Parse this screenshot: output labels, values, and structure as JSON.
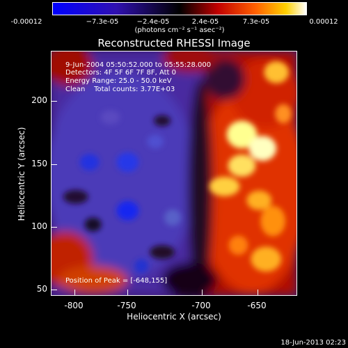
{
  "colorbar": {
    "ticks": [
      "-0.00012",
      "−7.3e-05",
      "−2.4e-05",
      "2.4e-05",
      "7.3e-05",
      "0.00012"
    ],
    "units": "(photons cm⁻² s⁻¹ asec⁻²)"
  },
  "title": "Reconstructed RHESSI Image",
  "annotations": {
    "time": "9-Jun-2004 05:50:52.000 to 05:55:28.000",
    "detectors": "Detectors: 4F 5F 6F 7F 8F, Att 0",
    "energy": "Energy Range: 25.0 - 50.0 keV",
    "clean": "Clean    Total counts: 3.77E+03",
    "peak": "Position of Peak = [-648,155]"
  },
  "axes": {
    "xlabel": "Heliocentric X (arcsec)",
    "ylabel": "Heliocentric Y (arcsec)",
    "xticks": [
      "-800",
      "-750",
      "-700",
      "-650"
    ],
    "yticks": [
      "200",
      "150",
      "100",
      "50"
    ]
  },
  "footer": "18-Jun-2013 02:23",
  "colors": {
    "min": "#0000ff",
    "mid": "#000000",
    "low_pos": "#c00000",
    "high_pos": "#ffff80",
    "max": "#ffffff"
  }
}
